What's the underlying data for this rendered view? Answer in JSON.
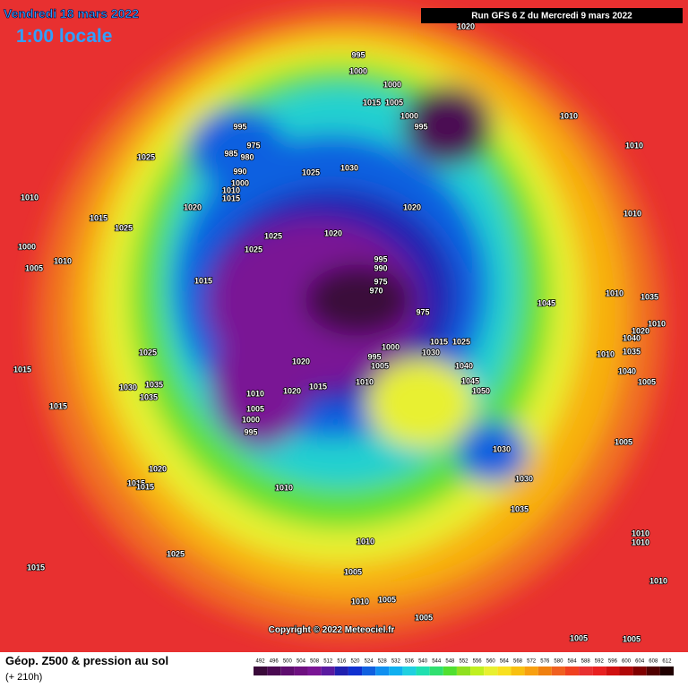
{
  "header": {
    "date": "Vendredi 18 mars 2022",
    "time": "1:00 locale",
    "run": "Run GFS 6 Z du Mercredi 9 mars 2022"
  },
  "footer": {
    "title": "Géop. Z500 & pression au sol",
    "lead": "(+ 210h)",
    "copyright": "Copyright © 2022 Meteociel.fr"
  },
  "legend": {
    "values": [
      492,
      496,
      500,
      504,
      508,
      512,
      516,
      520,
      524,
      528,
      532,
      536,
      540,
      544,
      548,
      552,
      556,
      560,
      564,
      568,
      572,
      576,
      580,
      584,
      588,
      592,
      596,
      600,
      604,
      608,
      612
    ],
    "colors": [
      "#3a0a3a",
      "#4b0a52",
      "#5e0d6e",
      "#6e1080",
      "#7a1595",
      "#5a1aa0",
      "#2020b0",
      "#1030d0",
      "#1060e0",
      "#1090f0",
      "#10b0f0",
      "#20d0e0",
      "#20e0b0",
      "#30e070",
      "#50e030",
      "#90e020",
      "#c0f020",
      "#e8f030",
      "#f8e020",
      "#f8c010",
      "#f8a010",
      "#f08010",
      "#f06020",
      "#f04020",
      "#e83030",
      "#e82020",
      "#d01010",
      "#b00808",
      "#800000",
      "#500000",
      "#200000"
    ]
  },
  "pressure_labels": [
    1020,
    995,
    1000,
    1000,
    1015,
    1005,
    1000,
    995,
    1010,
    995,
    975,
    985,
    980,
    990,
    1000,
    1010,
    1015,
    1025,
    1025,
    1030,
    1010,
    1010,
    1015,
    1025,
    1020,
    1020,
    1010,
    1000,
    1005,
    1010,
    1025,
    1025,
    1020,
    995,
    990,
    975,
    970,
    975,
    1015,
    1045,
    1010,
    1035,
    1020,
    1010,
    1040,
    1035,
    1010,
    1040,
    1005,
    1025,
    1000,
    995,
    1005,
    1015,
    1025,
    1030,
    1040,
    1045,
    1050,
    1020,
    1010,
    1015,
    1035,
    1030,
    1035,
    1010,
    1015,
    1020,
    1005,
    1000,
    995,
    1015,
    1005,
    1030,
    1020,
    1015,
    1015,
    1010,
    1030,
    1035,
    1010,
    1010,
    1010,
    1025,
    1015,
    1005,
    1010,
    1005,
    1010,
    1005,
    1005,
    1005
  ]
}
